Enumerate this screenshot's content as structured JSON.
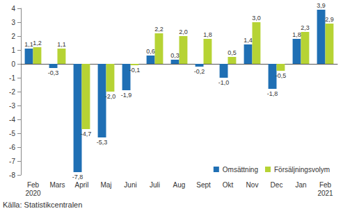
{
  "chart_data": {
    "type": "bar",
    "categories": [
      "Feb\n2020",
      "Mars",
      "April",
      "Maj",
      "Juni",
      "Juli",
      "Aug",
      "Sept",
      "Okt",
      "Nov",
      "Dec",
      "Jan",
      "Feb\n2021"
    ],
    "series": [
      {
        "name": "Omsättning",
        "color": "#1f6fb4",
        "values": [
          1.1,
          -0.3,
          -7.8,
          -5.3,
          -1.9,
          0.6,
          0.3,
          -0.2,
          -1.0,
          1.4,
          -1.8,
          1.8,
          3.9
        ],
        "value_labels": [
          "1,1",
          "-0,3",
          "-7,8",
          "-5,3",
          "-1,9",
          "0,6",
          "0,3",
          "-0,2",
          "-1,0",
          "1,4",
          "-1,8",
          "1,8",
          "3,9"
        ]
      },
      {
        "name": "Försäljningsvolym",
        "color": "#b6d334",
        "values": [
          1.2,
          1.1,
          -4.7,
          -2.0,
          -0.1,
          2.2,
          2.0,
          1.8,
          0.5,
          3.0,
          -0.5,
          2.3,
          2.9
        ],
        "value_labels": [
          "1,2",
          "1,1",
          "-4,7",
          "-2,0",
          "-0,1",
          "2,2",
          "2,0",
          "1,8",
          "0,5",
          "3,0",
          "-0,5",
          "2,3",
          "2,9"
        ]
      }
    ],
    "ylim": [
      -8,
      4
    ],
    "yticks": [
      -8,
      -7,
      -6,
      -5,
      -4,
      -3,
      -2,
      -1,
      0,
      1,
      2,
      3,
      4
    ],
    "grid": false,
    "legend": "lower right",
    "data_labels": true,
    "annotations": [
      "Källa: Statistikcentralen"
    ]
  }
}
